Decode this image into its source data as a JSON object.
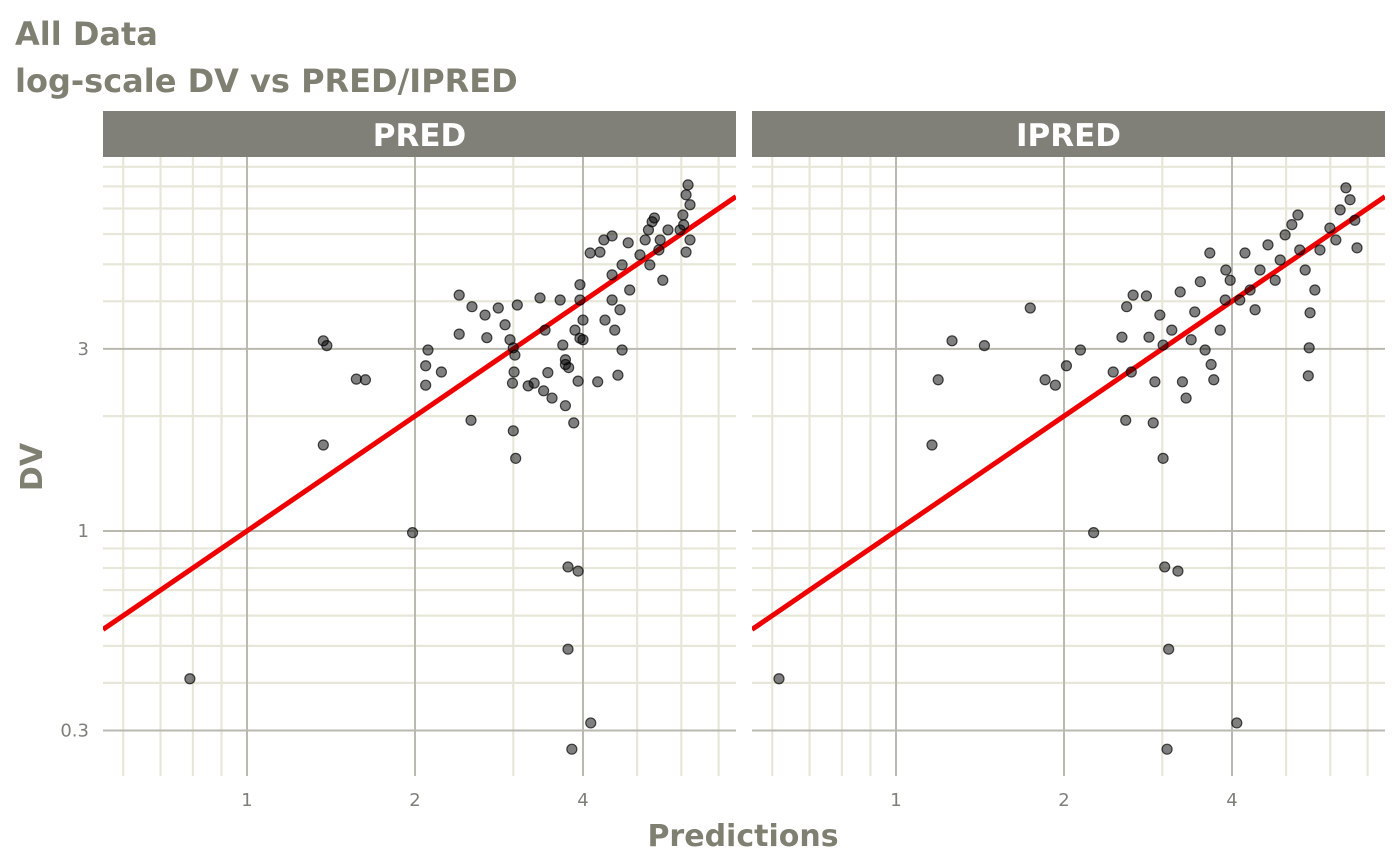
{
  "title": "All Data",
  "subtitle": "log-scale DV vs PRED/IPRED",
  "x_label": "Predictions",
  "y_label": "DV",
  "chart_data": [
    {
      "type": "scatter",
      "panel_title": "PRED",
      "log_x": true,
      "log_y": true,
      "grid": true,
      "color": "#000000",
      "identity_line": {
        "color": "#ee0000"
      },
      "xlim": [
        0.552,
        7.52
      ],
      "ylim": [
        0.228,
        9.55
      ],
      "xticks": [
        1,
        2,
        4
      ],
      "yticks": [
        0.3,
        1,
        3
      ],
      "x_minor_ticks": [
        0.6,
        0.7,
        0.8,
        0.9,
        3,
        5,
        6,
        7
      ],
      "y_minor_ticks": [
        0.4,
        0.5,
        0.6,
        0.7,
        0.8,
        0.9,
        2,
        4,
        5,
        6,
        7,
        8,
        9
      ],
      "x": [
        0.79,
        1.37,
        1.39,
        1.37,
        1.57,
        1.63,
        1.98,
        2.11,
        2.09,
        2.09,
        2.23,
        2.4,
        2.4,
        2.52,
        2.53,
        2.67,
        2.69,
        2.82,
        2.9,
        2.96,
        3.0,
        3.02,
        3.05,
        3.01,
        3.0,
        3.03,
        2.99,
        3.19,
        3.27,
        3.35,
        3.42,
        3.46,
        3.4,
        3.52,
        3.64,
        3.68,
        3.72,
        3.72,
        3.77,
        3.76,
        3.92,
        3.76,
        4.13,
        3.82,
        3.72,
        3.85,
        3.95,
        3.95,
        4.0,
        4.0,
        3.92,
        4.12,
        4.29,
        4.25,
        4.38,
        4.51,
        4.51,
        4.56,
        4.62,
        4.7,
        4.66,
        4.7,
        4.82,
        4.85,
        5.06,
        5.17,
        5.27,
        5.24,
        5.32,
        5.37,
        5.5,
        5.56,
        5.47,
        5.68,
        5.97,
        6.04,
        6.12,
        6.17,
        6.22,
        6.22,
        6.12,
        6.06,
        4.36,
        4.51,
        3.95,
        3.87
      ],
      "values": [
        0.41,
        3.15,
        3.06,
        1.68,
        2.5,
        2.49,
        0.99,
        2.98,
        2.71,
        2.41,
        2.61,
        4.15,
        3.28,
        1.95,
        3.87,
        3.68,
        3.21,
        3.84,
        3.47,
        3.17,
        3.02,
        2.89,
        3.91,
        2.61,
        1.83,
        1.55,
        2.44,
        2.4,
        2.44,
        4.08,
        3.36,
        2.6,
        2.33,
        2.23,
        4.03,
        3.07,
        2.81,
        2.73,
        2.68,
        0.805,
        0.785,
        0.49,
        0.314,
        0.268,
        2.13,
        1.92,
        4.03,
        4.42,
        3.57,
        3.17,
        2.47,
        5.35,
        5.38,
        2.46,
        3.57,
        4.69,
        4.03,
        3.36,
        2.56,
        2.98,
        3.8,
        4.98,
        5.69,
        4.28,
        5.29,
        5.79,
        4.98,
        6.15,
        6.46,
        6.61,
        5.79,
        4.54,
        5.45,
        6.15,
        6.15,
        6.73,
        7.6,
        8.07,
        7.16,
        5.79,
        5.38,
        6.34,
        5.79,
        5.93,
        3.2,
        3.36
      ]
    },
    {
      "type": "scatter",
      "panel_title": "IPRED",
      "log_x": true,
      "log_y": true,
      "grid": true,
      "color": "#000000",
      "identity_line": {
        "color": "#ee0000"
      },
      "xlim": [
        0.552,
        7.52
      ],
      "ylim": [
        0.228,
        9.55
      ],
      "xticks": [
        1,
        2,
        4
      ],
      "yticks": [
        0.3,
        1,
        3
      ],
      "x_minor_ticks": [
        0.6,
        0.7,
        0.8,
        0.9,
        3,
        5,
        6,
        7
      ],
      "y_minor_ticks": [
        0.4,
        0.5,
        0.6,
        0.7,
        0.8,
        0.9,
        2,
        4,
        5,
        6,
        7,
        8,
        9
      ],
      "x": [
        0.617,
        1.16,
        1.19,
        1.26,
        1.44,
        1.74,
        1.85,
        1.93,
        2.02,
        2.14,
        2.26,
        2.45,
        2.54,
        2.58,
        2.59,
        2.66,
        2.64,
        2.81,
        2.84,
        2.89,
        2.91,
        2.97,
        3.01,
        3.01,
        3.03,
        3.08,
        3.06,
        3.2,
        3.12,
        3.23,
        3.26,
        3.31,
        3.38,
        3.43,
        3.51,
        3.65,
        3.67,
        3.71,
        3.81,
        3.89,
        3.97,
        4.08,
        4.13,
        4.22,
        4.31,
        4.4,
        4.49,
        4.64,
        4.78,
        4.88,
        4.98,
        5.12,
        5.25,
        5.29,
        5.41,
        5.52,
        5.5,
        5.48,
        5.63,
        5.75,
        5.99,
        6.14,
        6.25,
        6.4,
        6.51,
        6.64,
        6.7,
        3.9,
        3.58
      ],
      "values": [
        0.41,
        1.68,
        2.49,
        3.15,
        3.06,
        3.84,
        2.49,
        2.41,
        2.71,
        2.98,
        0.99,
        2.61,
        3.22,
        1.95,
        3.87,
        4.15,
        2.61,
        4.13,
        3.22,
        1.92,
        2.46,
        3.68,
        3.07,
        1.55,
        0.805,
        0.49,
        0.268,
        0.785,
        3.36,
        4.23,
        2.46,
        2.23,
        3.17,
        3.75,
        4.5,
        5.35,
        2.73,
        2.49,
        3.36,
        4.03,
        4.54,
        0.314,
        4.03,
        5.35,
        4.28,
        3.8,
        4.83,
        5.62,
        4.54,
        5.13,
        5.97,
        6.35,
        6.73,
        5.45,
        4.83,
        3.73,
        3.02,
        2.55,
        4.28,
        5.45,
        6.22,
        5.79,
        6.94,
        7.93,
        7.38,
        6.52,
        5.52,
        4.83,
        2.98
      ]
    }
  ]
}
